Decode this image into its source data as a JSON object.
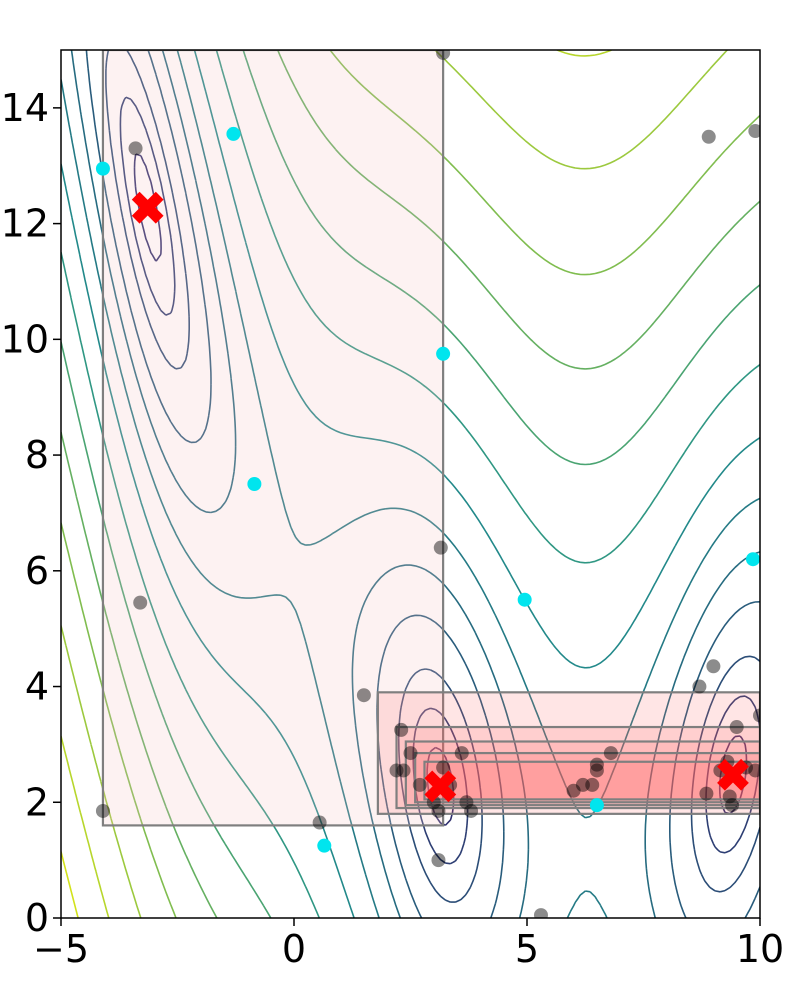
{
  "chart_data": {
    "type": "scatter",
    "title": "",
    "xlabel": "",
    "ylabel": "",
    "xlim": [
      -5,
      10
    ],
    "ylim": [
      0,
      15
    ],
    "grid": false,
    "x_ticks": [
      "−5",
      "0",
      "5",
      "10"
    ],
    "x_tick_values": [
      -5,
      0,
      5,
      10
    ],
    "y_ticks": [
      "0",
      "2",
      "4",
      "6",
      "8",
      "10",
      "12",
      "14"
    ],
    "y_tick_values": [
      0,
      2,
      4,
      6,
      8,
      10,
      12,
      14
    ],
    "contour_function": "branin",
    "contour_levels": [
      0.8,
      2,
      4,
      8,
      13,
      20,
      30,
      45,
      65,
      90,
      120,
      160,
      210,
      270
    ],
    "colors": {
      "contour_low": "#2f2f6e",
      "contour_mid": "#21918c",
      "contour_high": "#d2e21b",
      "cyan_points": "#00e5ee",
      "optima": "#ff0000",
      "box_fill": "#f4c4c4",
      "box_fill_dense": "#ff6060",
      "box_stroke": "#7f7f7f"
    },
    "regions": [
      {
        "x": [
          -4.1,
          3.2
        ],
        "y": [
          1.6,
          15.0
        ]
      },
      {
        "x": [
          1.8,
          10.0
        ],
        "y": [
          1.8,
          3.9
        ]
      },
      {
        "x": [
          2.2,
          10.0
        ],
        "y": [
          1.9,
          3.3
        ]
      },
      {
        "x": [
          2.4,
          10.0
        ],
        "y": [
          1.95,
          3.05
        ]
      },
      {
        "x": [
          2.6,
          10.0
        ],
        "y": [
          2.0,
          2.85
        ]
      },
      {
        "x": [
          2.8,
          10.0
        ],
        "y": [
          2.05,
          2.7
        ]
      }
    ],
    "series": [
      {
        "points": [
          [
            -3.4,
            13.3
          ],
          [
            -3.3,
            5.45
          ],
          [
            -4.1,
            1.85
          ],
          [
            0.55,
            1.65
          ],
          [
            1.5,
            3.85
          ],
          [
            3.15,
            6.4
          ],
          [
            3.2,
            14.95
          ],
          [
            3.1,
            1.0
          ],
          [
            5.3,
            0.05
          ],
          [
            8.9,
            13.5
          ],
          [
            8.7,
            4.0
          ],
          [
            9.0,
            4.35
          ],
          [
            9.9,
            13.6
          ],
          [
            2.3,
            3.25
          ],
          [
            2.5,
            2.85
          ],
          [
            2.2,
            2.55
          ],
          [
            2.35,
            2.55
          ],
          [
            2.7,
            2.3
          ],
          [
            3.0,
            2.0
          ],
          [
            3.1,
            1.85
          ],
          [
            3.2,
            2.6
          ],
          [
            3.6,
            2.85
          ],
          [
            3.7,
            2.0
          ],
          [
            3.8,
            1.85
          ],
          [
            3.35,
            2.3
          ],
          [
            6.0,
            2.2
          ],
          [
            6.2,
            2.3
          ],
          [
            6.5,
            2.55
          ],
          [
            6.5,
            2.65
          ],
          [
            6.8,
            2.85
          ],
          [
            6.4,
            2.3
          ],
          [
            9.3,
            2.7
          ],
          [
            9.15,
            2.55
          ],
          [
            9.35,
            2.1
          ],
          [
            9.5,
            3.3
          ],
          [
            8.85,
            2.15
          ],
          [
            9.7,
            2.6
          ],
          [
            9.9,
            2.55
          ],
          [
            10.0,
            3.5
          ],
          [
            9.4,
            1.95
          ]
        ]
      },
      {
        "points": [
          [
            -4.1,
            12.95
          ],
          [
            -1.3,
            13.55
          ],
          [
            -0.85,
            7.5
          ],
          [
            3.2,
            9.75
          ],
          [
            4.95,
            5.5
          ],
          [
            9.85,
            6.2
          ],
          [
            6.5,
            1.95
          ],
          [
            0.65,
            1.25
          ]
        ]
      },
      {
        "points": [
          [
            -3.14,
            12.275
          ],
          [
            3.14,
            2.275
          ],
          [
            9.42,
            2.475
          ]
        ]
      }
    ]
  }
}
